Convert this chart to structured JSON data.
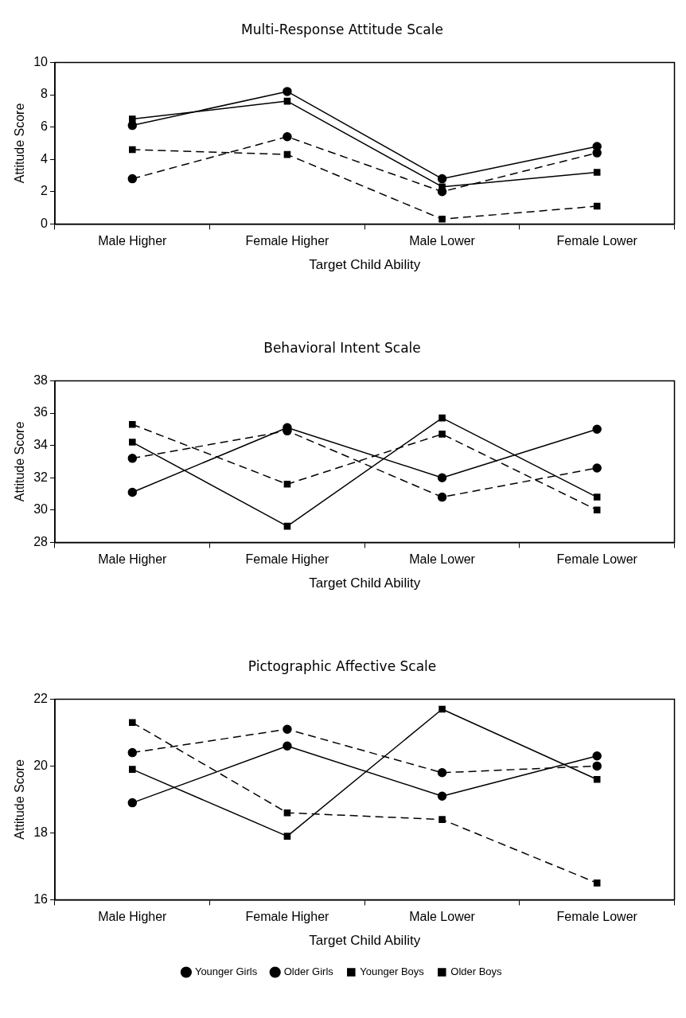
{
  "chart_data": [
    {
      "type": "line",
      "title": "Multi-Response Attitude Scale",
      "xlabel": "Target Child Ability",
      "ylabel": "Attitude Score",
      "categories": [
        "Male Higher",
        "Female Higher",
        "Male Lower",
        "Female Lower"
      ],
      "ylim": [
        0,
        10
      ],
      "yticks": [
        0,
        2,
        4,
        6,
        8,
        10
      ],
      "grid": false,
      "legend": false,
      "series": [
        {
          "color": "#000000",
          "marker": "circle",
          "line_style": "dashed",
          "values": [
            2.8,
            5.4,
            2.0,
            4.4
          ]
        },
        {
          "color": "#000000",
          "marker": "circle",
          "line_style": "solid",
          "values": [
            6.1,
            8.2,
            2.8,
            4.8
          ]
        },
        {
          "color": "#000000",
          "marker": "square",
          "line_style": "dashed",
          "values": [
            4.6,
            4.3,
            0.3,
            1.1
          ]
        },
        {
          "color": "#000000",
          "marker": "square",
          "line_style": "solid",
          "values": [
            6.5,
            7.6,
            2.3,
            3.2
          ]
        }
      ]
    },
    {
      "type": "line",
      "title": "Behavioral Intent Scale",
      "xlabel": "Target Child Ability",
      "ylabel": "Attitude Score",
      "categories": [
        "Male Higher",
        "Female Higher",
        "Male Lower",
        "Female Lower"
      ],
      "ylim": [
        28,
        38
      ],
      "yticks": [
        28,
        30,
        32,
        34,
        36,
        38
      ],
      "grid": false,
      "legend": false,
      "series": [
        {
          "color": "#000000",
          "marker": "circle",
          "line_style": "dashed",
          "values": [
            33.2,
            34.9,
            30.8,
            32.6
          ]
        },
        {
          "color": "#000000",
          "marker": "circle",
          "line_style": "solid",
          "values": [
            31.1,
            35.1,
            32.0,
            35.0
          ]
        },
        {
          "color": "#000000",
          "marker": "square",
          "line_style": "dashed",
          "values": [
            35.3,
            31.6,
            34.7,
            30.0
          ]
        },
        {
          "color": "#000000",
          "marker": "square",
          "line_style": "solid",
          "values": [
            34.2,
            29.0,
            35.7,
            30.8
          ]
        }
      ]
    },
    {
      "type": "line",
      "title": "Pictographic Affective Scale",
      "xlabel": "Target Child Ability",
      "ylabel": "Attitude Score",
      "categories": [
        "Male Higher",
        "Female Higher",
        "Male Lower",
        "Female Lower"
      ],
      "ylim": [
        16,
        22
      ],
      "yticks": [
        16,
        18,
        20,
        22
      ],
      "grid": false,
      "legend": "bottom",
      "series": [
        {
          "name": "Younger Girls",
          "color": "#000000",
          "marker": "circle",
          "line_style": "dashed",
          "values": [
            20.4,
            21.1,
            19.8,
            20.0
          ]
        },
        {
          "name": "Older Girls",
          "color": "#000000",
          "marker": "circle",
          "line_style": "solid",
          "values": [
            18.9,
            20.6,
            19.1,
            20.3
          ]
        },
        {
          "name": "Younger Boys",
          "color": "#000000",
          "marker": "square",
          "line_style": "dashed",
          "values": [
            21.3,
            18.6,
            18.4,
            16.5
          ]
        },
        {
          "name": "Older Boys",
          "color": "#000000",
          "marker": "square",
          "line_style": "solid",
          "values": [
            19.9,
            17.9,
            21.7,
            19.6
          ]
        }
      ]
    }
  ]
}
